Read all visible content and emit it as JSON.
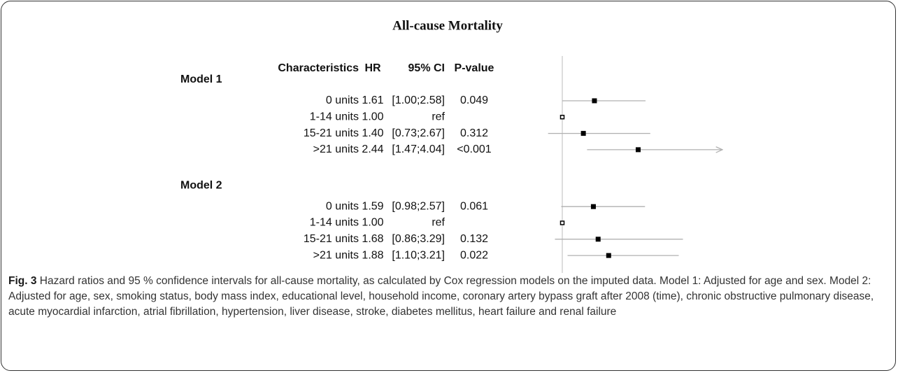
{
  "chart_data": {
    "type": "forest",
    "title": "All-cause Mortality",
    "columns": [
      "Characteristics",
      "HR",
      "95% CI",
      "P-value"
    ],
    "groups": [
      {
        "name": "Model 1",
        "categories": [
          "0 units",
          "1-14 units",
          "15-21 units",
          ">21 units"
        ],
        "values": [
          1.61,
          1.0,
          1.4,
          2.44
        ],
        "value_labels": [
          "1.61",
          "1.00",
          "1.40",
          "2.44"
        ],
        "lower": [
          1.0,
          null,
          0.73,
          1.47
        ],
        "upper": [
          2.58,
          null,
          2.67,
          4.04
        ],
        "ci_labels": [
          "[1.00;2.58]",
          "ref",
          "[0.73;2.67]",
          "[1.47;4.04]"
        ],
        "p_values": [
          "0.049",
          "",
          "0.312",
          "<0.001"
        ]
      },
      {
        "name": "Model 2",
        "categories": [
          "0 units",
          "1-14 units",
          "15-21 units",
          ">21 units"
        ],
        "values": [
          1.59,
          1.0,
          1.68,
          1.88
        ],
        "value_labels": [
          "1.59",
          "1.00",
          "1.68",
          "1.88"
        ],
        "lower": [
          0.98,
          null,
          0.86,
          1.1
        ],
        "upper": [
          2.57,
          null,
          3.29,
          3.21
        ],
        "ci_labels": [
          "[0.98;2.57]",
          "ref",
          "[0.86;3.29]",
          "[1.10;3.21]"
        ],
        "p_values": [
          "0.061",
          "",
          "0.132",
          "0.022"
        ]
      }
    ],
    "xlim": [
      1,
      4
    ],
    "xticks": [
      1,
      1.5,
      2,
      2.5,
      3,
      3.5,
      4
    ],
    "marker_color": "#000000",
    "ci_color": "#b0b0b0"
  },
  "caption": {
    "label": "Fig. 3",
    "text": "Hazard ratios and 95 % confidence intervals for all-cause mortality, as calculated by Cox regression models on the imputed data. Model 1: Adjusted for age and sex. Model 2: Adjusted for age, sex, smoking status, body mass index, educational level, household income, coronary artery bypass graft after 2008 (time), chronic obstructive pulmonary disease, acute myocardial infarction, atrial fibrillation, hypertension, liver disease, stroke, diabetes mellitus, heart failure and renal failure"
  }
}
